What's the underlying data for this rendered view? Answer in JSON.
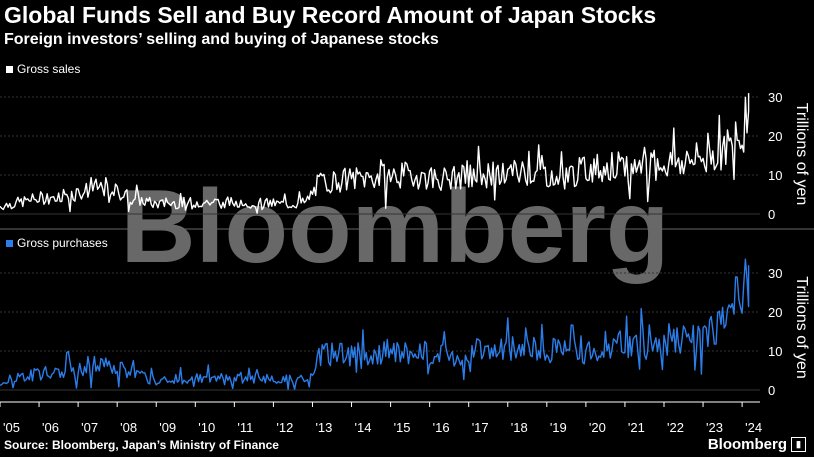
{
  "title": "Global Funds Sell and Buy Record Amount of Japan Stocks",
  "subtitle": "Foreign investors’ selling and buying of Japanese stocks",
  "source": "Source: Bloomberg, Japan’s Ministry of Finance",
  "brand": "Bloomberg",
  "watermark": "Bloomberg",
  "colors": {
    "sales": "#ffffff",
    "purchases": "#2b7de9",
    "background": "#000000"
  },
  "chart_data": [
    {
      "type": "line",
      "series": [
        {
          "name": "Gross sales",
          "values_ref": "shared"
        }
      ],
      "ylabel": "Trillions of yen",
      "ylim": [
        -2,
        32
      ],
      "yticks": [
        0,
        10,
        20,
        30
      ],
      "xlabel": "",
      "x_range": [
        "2005-01",
        "2024-04"
      ],
      "anchors": [
        [
          "2005-01",
          2
        ],
        [
          "2006-01",
          4
        ],
        [
          "2007-01",
          5.5
        ],
        [
          "2007-09",
          7
        ],
        [
          "2008-06",
          4
        ],
        [
          "2009-01",
          2.5
        ],
        [
          "2010-01",
          3
        ],
        [
          "2011-01",
          3
        ],
        [
          "2012-06",
          2.5
        ],
        [
          "2012-11",
          3
        ],
        [
          "2013-03",
          8
        ],
        [
          "2014-01",
          9
        ],
        [
          "2015-06",
          10
        ],
        [
          "2016-06",
          9
        ],
        [
          "2017-06",
          10
        ],
        [
          "2018-06",
          11
        ],
        [
          "2019-06",
          9.5
        ],
        [
          "2020-03",
          12
        ],
        [
          "2021-01",
          12
        ],
        [
          "2022-01",
          13
        ],
        [
          "2023-01",
          14
        ],
        [
          "2023-11",
          18
        ],
        [
          "2024-01",
          20
        ],
        [
          "2024-03",
          31
        ]
      ]
    },
    {
      "type": "line",
      "series": [
        {
          "name": "Gross purchases"
        }
      ],
      "ylabel": "Trillions of yen",
      "ylim": [
        -2,
        33
      ],
      "yticks": [
        0,
        10,
        20,
        30
      ],
      "xlabel": "",
      "x_range": [
        "2005-01",
        "2024-04"
      ],
      "anchors": [
        [
          "2005-01",
          2.5
        ],
        [
          "2006-01",
          4
        ],
        [
          "2007-01",
          5.5
        ],
        [
          "2007-09",
          7
        ],
        [
          "2008-06",
          4
        ],
        [
          "2009-01",
          2.5
        ],
        [
          "2010-01",
          3
        ],
        [
          "2011-01",
          3
        ],
        [
          "2012-06",
          2.5
        ],
        [
          "2012-11",
          3
        ],
        [
          "2013-03",
          9
        ],
        [
          "2014-01",
          9
        ],
        [
          "2015-06",
          10
        ],
        [
          "2016-06",
          9
        ],
        [
          "2017-06",
          10
        ],
        [
          "2018-06",
          11
        ],
        [
          "2019-06",
          9.5
        ],
        [
          "2020-03",
          11
        ],
        [
          "2021-01",
          12
        ],
        [
          "2022-01",
          13
        ],
        [
          "2023-01",
          14
        ],
        [
          "2023-11",
          18
        ],
        [
          "2024-01",
          20
        ],
        [
          "2024-03",
          32
        ]
      ]
    }
  ],
  "xticks": [
    "'05",
    "'06",
    "'07",
    "'08",
    "'09",
    "'10",
    "'11",
    "'12",
    "'13",
    "'14",
    "'15",
    "'16",
    "'17",
    "'18",
    "'19",
    "'20",
    "'21",
    "'22",
    "'23",
    "'24"
  ],
  "legend": {
    "sales": "Gross sales",
    "purchases": "Gross purchases"
  },
  "ylabel": "Trillions of yen"
}
